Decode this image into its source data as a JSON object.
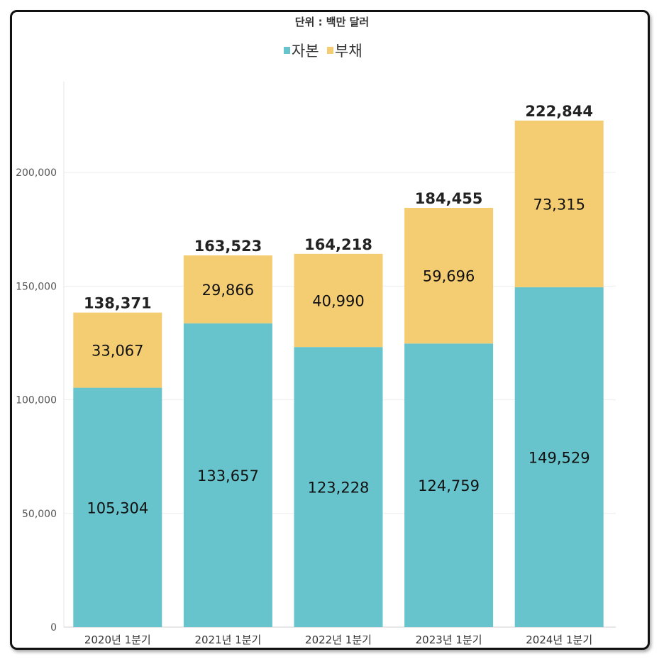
{
  "chart_data": {
    "type": "bar",
    "stacked": true,
    "subtitle": "단위 : 백만 달러",
    "categories": [
      "2020년 1분기",
      "2021년 1분기",
      "2022년 1분기",
      "2023년 1분기",
      "2024년 1분기"
    ],
    "series": [
      {
        "name": "자본",
        "color": "#67c4cc",
        "values": [
          105304,
          133657,
          123228,
          124759,
          149529
        ]
      },
      {
        "name": "부채",
        "color": "#f4cd72",
        "values": [
          33067,
          29866,
          40990,
          59696,
          73315
        ]
      }
    ],
    "totals": [
      138371,
      163523,
      164218,
      184455,
      222844
    ],
    "value_labels": {
      "자본": [
        "105,304",
        "133,657",
        "123,228",
        "124,759",
        "149,529"
      ],
      "부채": [
        "33,067",
        "29,866",
        "40,990",
        "59,696",
        "73,315"
      ],
      "totals": [
        "138,371",
        "163,523",
        "164,218",
        "184,455",
        "222,844"
      ]
    },
    "ylim": [
      0,
      240000
    ],
    "yticks": [
      0,
      50000,
      100000,
      150000,
      200000
    ],
    "ytick_labels": [
      "0",
      "50,000",
      "100,000",
      "150,000",
      "200,000"
    ],
    "grid": true,
    "legend_position": "top-center",
    "xlabel": "",
    "ylabel": ""
  }
}
